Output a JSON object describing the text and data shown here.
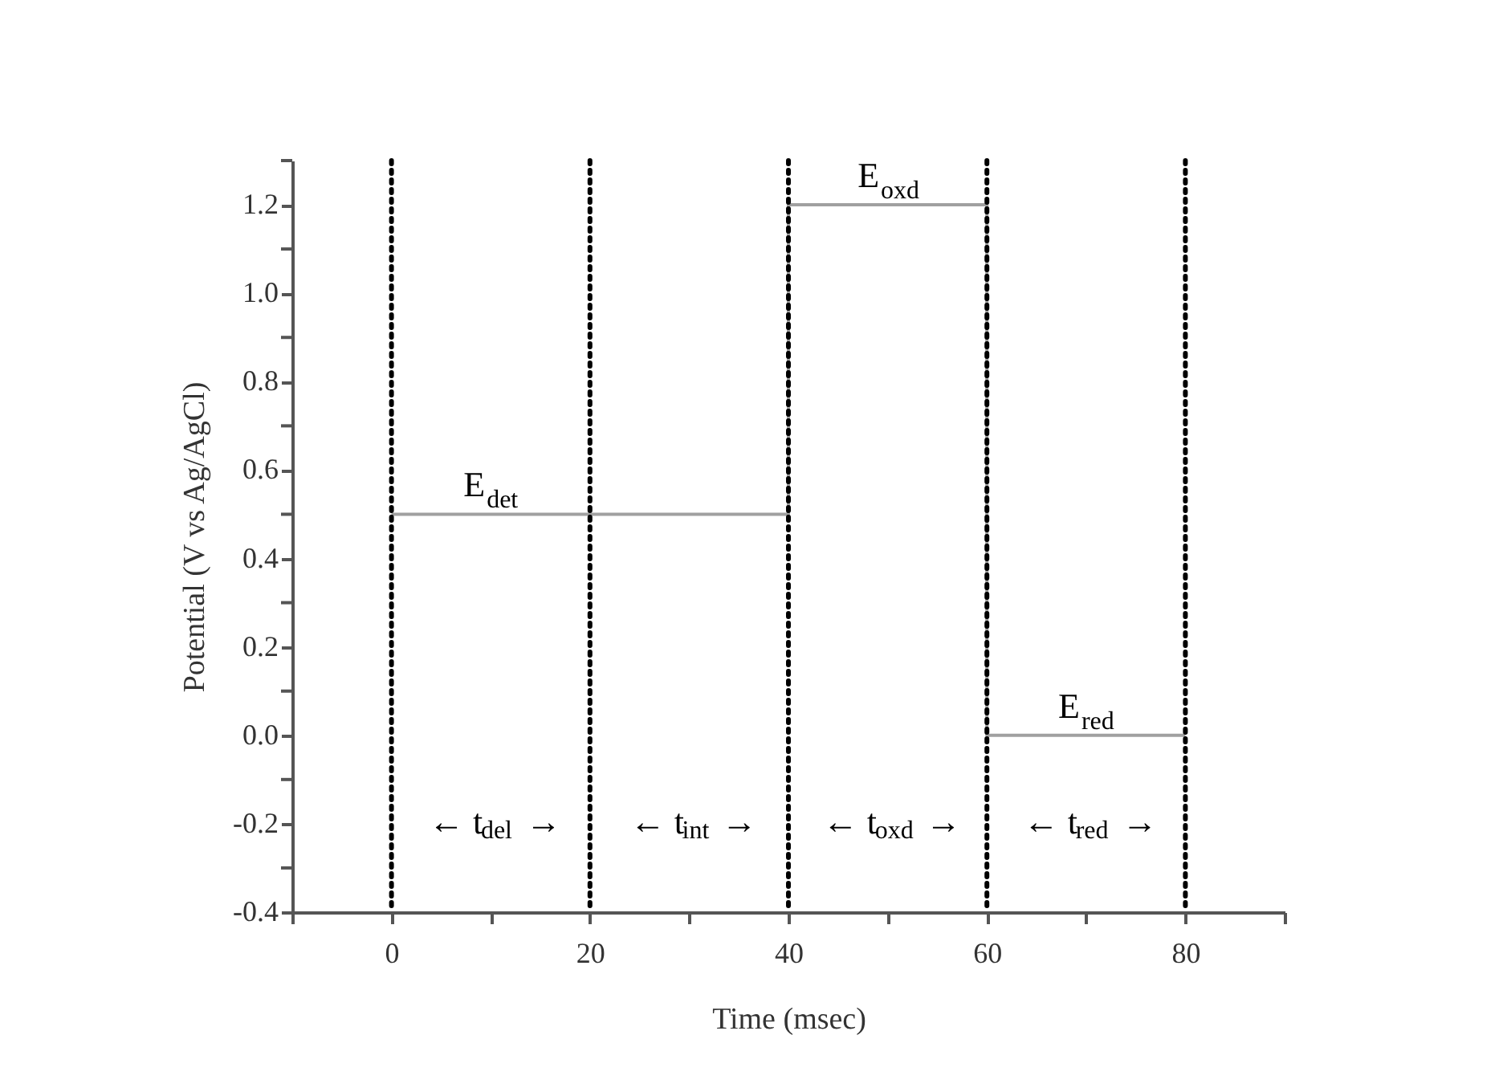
{
  "chart_data": {
    "type": "line",
    "xlabel": "Time (msec)",
    "ylabel": "Potential (V vs Ag/AgCl)",
    "x": [
      0,
      40,
      40,
      60,
      60,
      80
    ],
    "series": [
      {
        "color": "#a0a0a0",
        "values": [
          0.5,
          0.5,
          1.2,
          1.2,
          0.0,
          0.0
        ]
      }
    ],
    "xlim": [
      -10,
      90
    ],
    "ylim": [
      -0.4,
      1.3
    ],
    "xticks": [
      {
        "value": -10,
        "label": null
      },
      0,
      {
        "value": 10,
        "label": null
      },
      20,
      {
        "value": 30,
        "label": null
      },
      40,
      {
        "value": 50,
        "label": null
      },
      60,
      {
        "value": 70,
        "label": null
      },
      80,
      {
        "value": 90,
        "label": null
      }
    ],
    "yticks": [
      {
        "value": -0.4,
        "label": "-0.4"
      },
      {
        "value": -0.3,
        "label": null
      },
      {
        "value": -0.2,
        "label": "-0.2"
      },
      {
        "value": -0.1,
        "label": null
      },
      {
        "value": 0,
        "label": "0.0"
      },
      {
        "value": 0.1,
        "label": null
      },
      {
        "value": 0.2,
        "label": "0.2"
      },
      {
        "value": 0.3,
        "label": null
      },
      {
        "value": 0.4,
        "label": "0.4"
      },
      {
        "value": 0.5,
        "label": null
      },
      {
        "value": 0.6,
        "label": "0.6"
      },
      {
        "value": 0.7,
        "label": null
      },
      {
        "value": 0.8,
        "label": "0.8"
      },
      {
        "value": 0.9,
        "label": null
      },
      {
        "value": 1.0,
        "label": "1.0"
      },
      {
        "value": 1.1,
        "label": null
      },
      {
        "value": 1.2,
        "label": "1.2"
      },
      {
        "value": 1.3,
        "label": null
      }
    ],
    "ref_lines": [
      {
        "axis": "x",
        "value": 0,
        "color": "#000000",
        "line_style": "dotted"
      },
      {
        "axis": "x",
        "value": 20,
        "color": "#000000",
        "line_style": "dotted"
      },
      {
        "axis": "x",
        "value": 40,
        "color": "#000000",
        "line_style": "dotted"
      },
      {
        "axis": "x",
        "value": 60,
        "color": "#000000",
        "line_style": "dotted"
      },
      {
        "axis": "x",
        "value": 80,
        "color": "#000000",
        "line_style": "dotted"
      }
    ],
    "annotations": [
      {
        "text": "E$_{det}$",
        "x": 10,
        "y": 0.5
      },
      {
        "text": "E$_{oxd}$",
        "x": 50,
        "y": 1.2
      },
      {
        "text": "E$_{red}$",
        "x": 70,
        "y": 0.0
      },
      "← t$_{del}$ →",
      "← t$_{int}$ →",
      "← t$_{oxd}$ →",
      "← t$_{red}$ →"
    ],
    "grid": false,
    "marker": "none",
    "line_style": "solid"
  }
}
